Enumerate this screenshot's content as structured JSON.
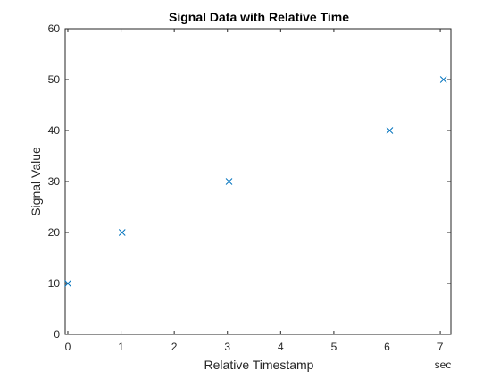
{
  "chart_data": {
    "type": "scatter",
    "title": "Signal Data with Relative Time",
    "xlabel": "Relative Timestamp",
    "ylabel": "Signal Value",
    "x_unit": "sec",
    "xlim": [
      -0.05,
      7.2
    ],
    "ylim": [
      0,
      60
    ],
    "x_ticks": [
      0,
      1,
      2,
      3,
      4,
      5,
      6,
      7
    ],
    "y_ticks": [
      0,
      10,
      20,
      30,
      40,
      50,
      60
    ],
    "marker": "x",
    "marker_color": "#0072BD",
    "grid": false,
    "box": true,
    "series": [
      {
        "x": [
          0.0,
          1.02,
          3.03,
          6.05,
          7.06
        ],
        "y": [
          10,
          20,
          30,
          40,
          50
        ]
      }
    ]
  }
}
